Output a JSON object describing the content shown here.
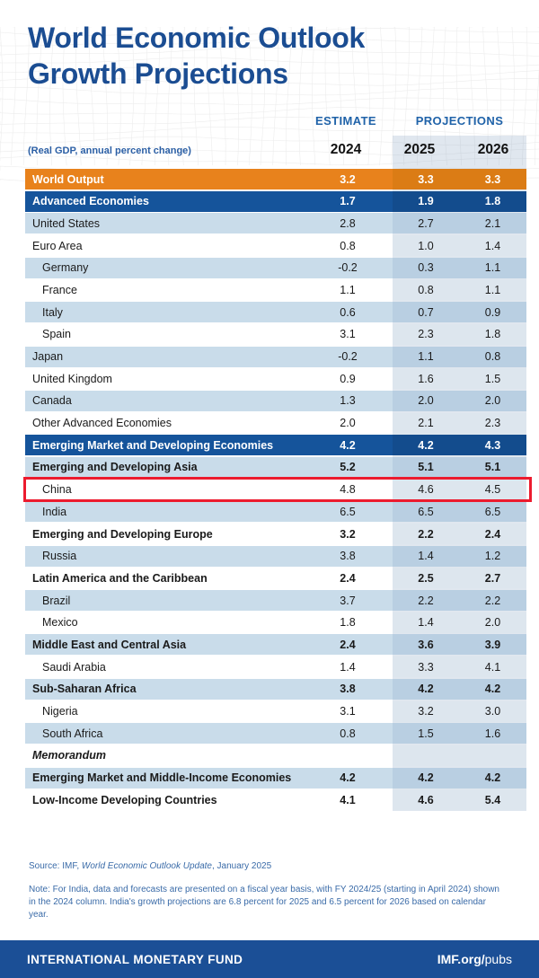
{
  "title": {
    "line1": "World Economic Outlook",
    "line2": "Growth Projections"
  },
  "header": {
    "estimate_label": "ESTIMATE",
    "projections_label": "PROJECTIONS",
    "subtitle": "(Real GDP, annual percent change)",
    "years": [
      "2024",
      "2025",
      "2026"
    ]
  },
  "colors": {
    "title_blue": "#1B4D92",
    "header_label_blue": "#2063A9",
    "world_output_orange": "#E8821C",
    "aggregate_navy": "#15549B",
    "stripe_light_blue": "#C9DCEA",
    "projections_tint": "#DDE6EE",
    "highlight_red": "#EC1B2E",
    "footnote_blue": "#3A6BA8",
    "footer_bar_blue": "#1B4F96"
  },
  "chart_data": {
    "type": "table",
    "title": "World Economic Outlook Growth Projections",
    "subtitle": "(Real GDP, annual percent change)",
    "column_groups": [
      {
        "label": "ESTIMATE",
        "columns": [
          "2024"
        ]
      },
      {
        "label": "PROJECTIONS",
        "columns": [
          "2025",
          "2026"
        ]
      }
    ],
    "columns": [
      "2024",
      "2025",
      "2026"
    ],
    "rows": [
      {
        "label": "World Output",
        "values": [
          "3.2",
          "3.3",
          "3.3"
        ],
        "style": "orange",
        "indent": 0,
        "bold": true
      },
      {
        "label": "Advanced Economies",
        "values": [
          "1.7",
          "1.9",
          "1.8"
        ],
        "style": "navy",
        "indent": 0,
        "bold": true
      },
      {
        "label": "United States",
        "values": [
          "2.8",
          "2.7",
          "2.1"
        ],
        "style": "light",
        "indent": 0,
        "bold": false
      },
      {
        "label": "Euro Area",
        "values": [
          "0.8",
          "1.0",
          "1.4"
        ],
        "style": "white",
        "indent": 0,
        "bold": false
      },
      {
        "label": "Germany",
        "values": [
          "-0.2",
          "0.3",
          "1.1"
        ],
        "style": "light",
        "indent": 1,
        "bold": false
      },
      {
        "label": "France",
        "values": [
          "1.1",
          "0.8",
          "1.1"
        ],
        "style": "white",
        "indent": 1,
        "bold": false
      },
      {
        "label": "Italy",
        "values": [
          "0.6",
          "0.7",
          "0.9"
        ],
        "style": "light",
        "indent": 1,
        "bold": false
      },
      {
        "label": "Spain",
        "values": [
          "3.1",
          "2.3",
          "1.8"
        ],
        "style": "white",
        "indent": 1,
        "bold": false
      },
      {
        "label": "Japan",
        "values": [
          "-0.2",
          "1.1",
          "0.8"
        ],
        "style": "light",
        "indent": 0,
        "bold": false
      },
      {
        "label": "United Kingdom",
        "values": [
          "0.9",
          "1.6",
          "1.5"
        ],
        "style": "white",
        "indent": 0,
        "bold": false
      },
      {
        "label": "Canada",
        "values": [
          "1.3",
          "2.0",
          "2.0"
        ],
        "style": "light",
        "indent": 0,
        "bold": false
      },
      {
        "label": "Other Advanced Economies",
        "values": [
          "2.0",
          "2.1",
          "2.3"
        ],
        "style": "white",
        "indent": 0,
        "bold": false
      },
      {
        "label": "Emerging Market and Developing Economies",
        "values": [
          "4.2",
          "4.2",
          "4.3"
        ],
        "style": "navy",
        "indent": 0,
        "bold": true
      },
      {
        "label": "Emerging and Developing Asia",
        "values": [
          "5.2",
          "5.1",
          "5.1"
        ],
        "style": "light",
        "indent": 0,
        "bold": true
      },
      {
        "label": "China",
        "values": [
          "4.8",
          "4.6",
          "4.5"
        ],
        "style": "white",
        "indent": 1,
        "bold": false,
        "highlight": true
      },
      {
        "label": "India",
        "values": [
          "6.5",
          "6.5",
          "6.5"
        ],
        "style": "light",
        "indent": 1,
        "bold": false
      },
      {
        "label": "Emerging and Developing Europe",
        "values": [
          "3.2",
          "2.2",
          "2.4"
        ],
        "style": "white",
        "indent": 0,
        "bold": true
      },
      {
        "label": "Russia",
        "values": [
          "3.8",
          "1.4",
          "1.2"
        ],
        "style": "light",
        "indent": 1,
        "bold": false
      },
      {
        "label": "Latin America and the Caribbean",
        "values": [
          "2.4",
          "2.5",
          "2.7"
        ],
        "style": "white",
        "indent": 0,
        "bold": true
      },
      {
        "label": "Brazil",
        "values": [
          "3.7",
          "2.2",
          "2.2"
        ],
        "style": "light",
        "indent": 1,
        "bold": false
      },
      {
        "label": "Mexico",
        "values": [
          "1.8",
          "1.4",
          "2.0"
        ],
        "style": "white",
        "indent": 1,
        "bold": false
      },
      {
        "label": "Middle East and Central Asia",
        "values": [
          "2.4",
          "3.6",
          "3.9"
        ],
        "style": "light",
        "indent": 0,
        "bold": true
      },
      {
        "label": "Saudi Arabia",
        "values": [
          "1.4",
          "3.3",
          "4.1"
        ],
        "style": "white",
        "indent": 1,
        "bold": false
      },
      {
        "label": "Sub-Saharan Africa",
        "values": [
          "3.8",
          "4.2",
          "4.2"
        ],
        "style": "light",
        "indent": 0,
        "bold": true
      },
      {
        "label": "Nigeria",
        "values": [
          "3.1",
          "3.2",
          "3.0"
        ],
        "style": "white",
        "indent": 1,
        "bold": false
      },
      {
        "label": "South Africa",
        "values": [
          "0.8",
          "1.5",
          "1.6"
        ],
        "style": "light",
        "indent": 1,
        "bold": false
      },
      {
        "label": "Memorandum",
        "values": null,
        "style": "white",
        "indent": 0,
        "bold": true,
        "italic": true
      },
      {
        "label": "Emerging Market and Middle-Income Economies",
        "values": [
          "4.2",
          "4.2",
          "4.2"
        ],
        "style": "light",
        "indent": 0,
        "bold": true
      },
      {
        "label": "Low-Income Developing Countries",
        "values": [
          "4.1",
          "4.6",
          "5.4"
        ],
        "style": "white",
        "indent": 0,
        "bold": true
      }
    ]
  },
  "source": {
    "prefix": "Source: IMF, ",
    "italic": "World Economic Outlook Update",
    "suffix": ", January 2025"
  },
  "note": "Note: For India, data and forecasts are presented on a fiscal year basis, with FY 2024/25 (starting in April 2024) shown in the 2024 column. India's growth projections are 6.8 percent for 2025 and 6.5 percent for 2026 based on calendar year.",
  "footer": {
    "left": "INTERNATIONAL MONETARY FUND",
    "right_bold": "IMF.org/",
    "right_regular": "pubs"
  }
}
